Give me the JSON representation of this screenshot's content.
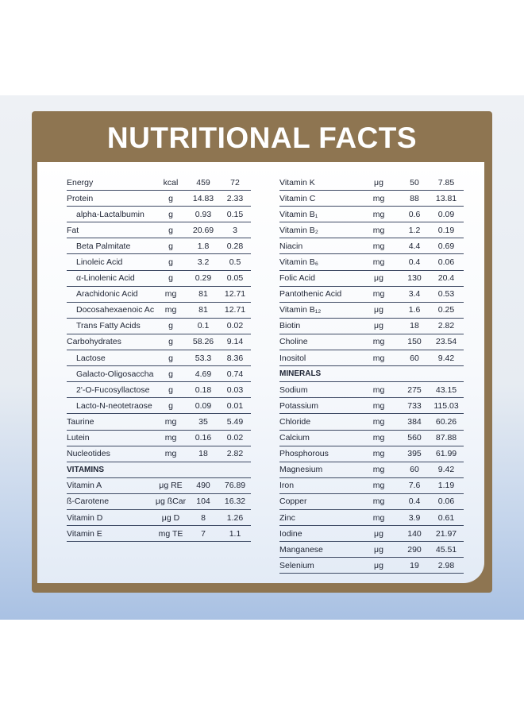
{
  "title": "NUTRITIONAL FACTS",
  "left_rows": [
    {
      "name": "Energy",
      "unit": "kcal",
      "v1": "459",
      "v2": "72",
      "indent": false
    },
    {
      "name": "Protein",
      "unit": "g",
      "v1": "14.83",
      "v2": "2.33",
      "indent": false
    },
    {
      "name": "alpha-Lactalbumin",
      "unit": "g",
      "v1": "0.93",
      "v2": "0.15",
      "indent": true
    },
    {
      "name": "Fat",
      "unit": "g",
      "v1": "20.69",
      "v2": "3",
      "indent": false
    },
    {
      "name": "Beta Palmitate",
      "unit": "g",
      "v1": "1.8",
      "v2": "0.28",
      "indent": true
    },
    {
      "name": "Linoleic Acid",
      "unit": "g",
      "v1": "3.2",
      "v2": "0.5",
      "indent": true
    },
    {
      "name": "α-Linolenic Acid",
      "unit": "g",
      "v1": "0.29",
      "v2": "0.05",
      "indent": true
    },
    {
      "name": "Arachidonic Acid",
      "unit": "mg",
      "v1": "81",
      "v2": "12.71",
      "indent": true
    },
    {
      "name": "Docosahexaenoic Acid",
      "unit": "mg",
      "v1": "81",
      "v2": "12.71",
      "indent": true
    },
    {
      "name": "Trans Fatty Acids",
      "unit": "g",
      "v1": "0.1",
      "v2": "0.02",
      "indent": true
    },
    {
      "name": "Carbohydrates",
      "unit": "g",
      "v1": "58.26",
      "v2": "9.14",
      "indent": false
    },
    {
      "name": "Lactose",
      "unit": "g",
      "v1": "53.3",
      "v2": "8.36",
      "indent": true
    },
    {
      "name": "Galacto-Oligosaccharides",
      "unit": "g",
      "v1": "4.69",
      "v2": "0.74",
      "indent": true
    },
    {
      "name": "2'-O-Fucosyllactose",
      "unit": "g",
      "v1": "0.18",
      "v2": "0.03",
      "indent": true
    },
    {
      "name": "Lacto-N-neotetraose",
      "unit": "g",
      "v1": "0.09",
      "v2": "0.01",
      "indent": true
    },
    {
      "name": "Taurine",
      "unit": "mg",
      "v1": "35",
      "v2": "5.49",
      "indent": false
    },
    {
      "name": "Lutein",
      "unit": "mg",
      "v1": "0.16",
      "v2": "0.02",
      "indent": false
    },
    {
      "name": "Nucleotides",
      "unit": "mg",
      "v1": "18",
      "v2": "2.82",
      "indent": false
    }
  ],
  "vitamins_heading": "VITAMINS",
  "vitamin_rows": [
    {
      "name": "Vitamin A",
      "unit": "μg RE",
      "v1": "490",
      "v2": "76.89"
    },
    {
      "name": "ß-Carotene",
      "unit": "μg ßCar",
      "v1": "104",
      "v2": "16.32"
    },
    {
      "name": "Vitamin D",
      "unit": "μg D",
      "v1": "8",
      "v2": "1.26"
    },
    {
      "name": "Vitamin E",
      "unit": "mg TE",
      "v1": "7",
      "v2": "1.1"
    }
  ],
  "right_rows": [
    {
      "name": "Vitamin K",
      "unit": "μg",
      "v1": "50",
      "v2": "7.85"
    },
    {
      "name": "Vitamin C",
      "unit": "mg",
      "v1": "88",
      "v2": "13.81"
    },
    {
      "name": "Vitamin B₁",
      "unit": "mg",
      "v1": "0.6",
      "v2": "0.09"
    },
    {
      "name": "Vitamin B₂",
      "unit": "mg",
      "v1": "1.2",
      "v2": "0.19"
    },
    {
      "name": "Niacin",
      "unit": "mg",
      "v1": "4.4",
      "v2": "0.69"
    },
    {
      "name": "Vitamin B₆",
      "unit": "mg",
      "v1": "0.4",
      "v2": "0.06"
    },
    {
      "name": "Folic Acid",
      "unit": "μg",
      "v1": "130",
      "v2": "20.4"
    },
    {
      "name": "Pantothenic Acid",
      "unit": "mg",
      "v1": "3.4",
      "v2": "0.53"
    },
    {
      "name": "Vitamin B₁₂",
      "unit": "μg",
      "v1": "1.6",
      "v2": "0.25"
    },
    {
      "name": "Biotin",
      "unit": "μg",
      "v1": "18",
      "v2": "2.82"
    },
    {
      "name": "Choline",
      "unit": "mg",
      "v1": "150",
      "v2": "23.54"
    },
    {
      "name": "Inositol",
      "unit": "mg",
      "v1": "60",
      "v2": "9.42"
    }
  ],
  "minerals_heading": "MINERALS",
  "mineral_rows": [
    {
      "name": "Sodium",
      "unit": "mg",
      "v1": "275",
      "v2": "43.15"
    },
    {
      "name": "Potassium",
      "unit": "mg",
      "v1": "733",
      "v2": "115.03"
    },
    {
      "name": "Chloride",
      "unit": "mg",
      "v1": "384",
      "v2": "60.26"
    },
    {
      "name": "Calcium",
      "unit": "mg",
      "v1": "560",
      "v2": "87.88"
    },
    {
      "name": "Phosphorous",
      "unit": "mg",
      "v1": "395",
      "v2": "61.99"
    },
    {
      "name": "Magnesium",
      "unit": "mg",
      "v1": "60",
      "v2": "9.42"
    },
    {
      "name": "Iron",
      "unit": "mg",
      "v1": "7.6",
      "v2": "1.19"
    },
    {
      "name": "Copper",
      "unit": "mg",
      "v1": "0.4",
      "v2": "0.06"
    },
    {
      "name": "Zinc",
      "unit": "mg",
      "v1": "3.9",
      "v2": "0.61"
    },
    {
      "name": "Iodine",
      "unit": "μg",
      "v1": "140",
      "v2": "21.97"
    },
    {
      "name": "Manganese",
      "unit": "μg",
      "v1": "290",
      "v2": "45.51"
    },
    {
      "name": "Selenium",
      "unit": "μg",
      "v1": "19",
      "v2": "2.98"
    }
  ]
}
